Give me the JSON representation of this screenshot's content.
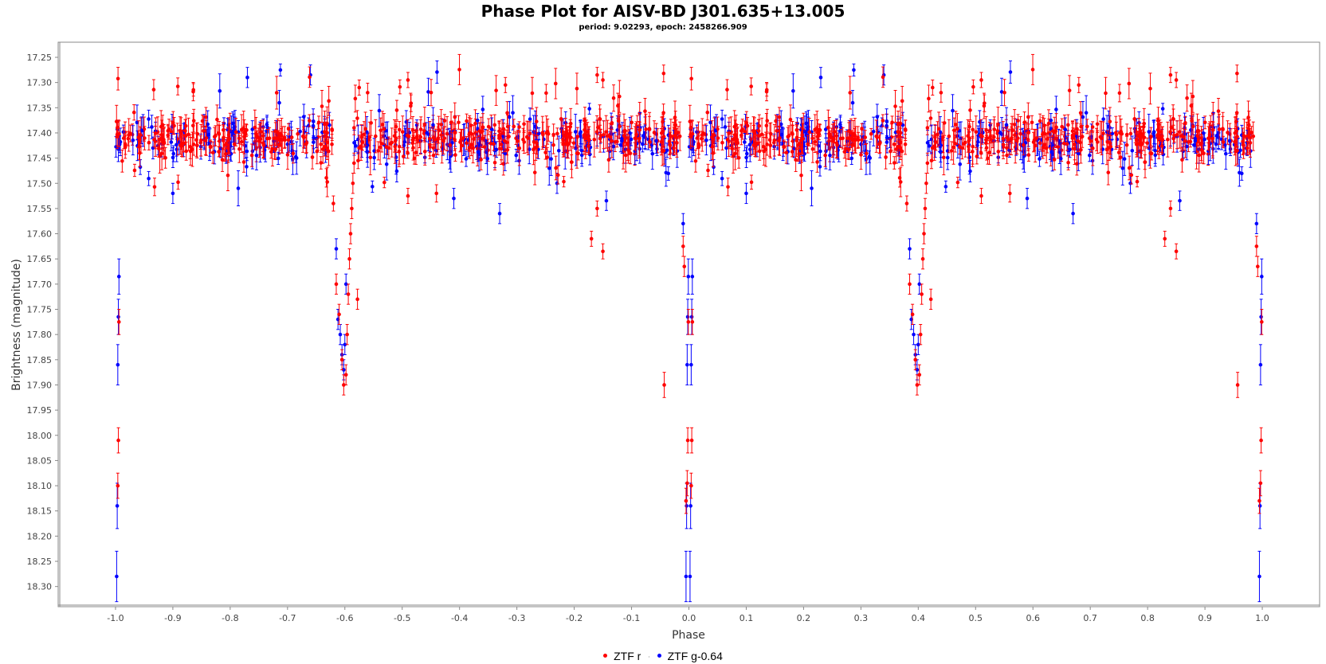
{
  "chart_data": {
    "type": "scatter",
    "title": "Phase Plot for AISV-BD J301.635+13.005",
    "subtitle": "period: 9.02293, epoch: 2458266.909",
    "xlabel": "Phase",
    "ylabel": "Brightness (magnitude)",
    "xlim": [
      -1.1,
      1.1
    ],
    "ylim": [
      18.34,
      17.22
    ],
    "y_inverted": true,
    "x_ticks": [
      "-1.0",
      "-0.9",
      "-0.8",
      "-0.7",
      "-0.6",
      "-0.5",
      "-0.4",
      "-0.3",
      "-0.2",
      "-0.1",
      "0.0",
      "0.1",
      "0.2",
      "0.3",
      "0.4",
      "0.5",
      "0.6",
      "0.7",
      "0.8",
      "0.9",
      "1.0"
    ],
    "y_ticks": [
      "17.25",
      "17.30",
      "17.35",
      "17.40",
      "17.45",
      "17.50",
      "17.55",
      "17.60",
      "17.65",
      "17.70",
      "17.75",
      "17.80",
      "17.85",
      "17.90",
      "17.95",
      "18.00",
      "18.05",
      "18.10",
      "18.15",
      "18.20",
      "18.25",
      "18.30"
    ],
    "grid": false,
    "error_bars": true,
    "legend_position": "bottom-center",
    "phase_repeat": "points shown for phase p and repeated at p+1",
    "series": [
      {
        "name": "ZTF r",
        "color": "#ff0000",
        "baseline": 17.41,
        "baseline_scatter": 0.03,
        "baseline_range": [
          -1.0,
          0.0
        ],
        "points": [
          {
            "x": -0.996,
            "y": 18.1,
            "err": 0.025
          },
          {
            "x": -0.995,
            "y": 18.01,
            "err": 0.025
          },
          {
            "x": -0.994,
            "y": 17.775,
            "err": 0.025
          },
          {
            "x": -0.62,
            "y": 17.54,
            "err": 0.015
          },
          {
            "x": -0.615,
            "y": 17.7,
            "err": 0.02
          },
          {
            "x": -0.61,
            "y": 17.76,
            "err": 0.02
          },
          {
            "x": -0.605,
            "y": 17.85,
            "err": 0.02
          },
          {
            "x": -0.602,
            "y": 17.9,
            "err": 0.02
          },
          {
            "x": -0.598,
            "y": 17.88,
            "err": 0.02
          },
          {
            "x": -0.596,
            "y": 17.8,
            "err": 0.02
          },
          {
            "x": -0.594,
            "y": 17.72,
            "err": 0.02
          },
          {
            "x": -0.592,
            "y": 17.65,
            "err": 0.02
          },
          {
            "x": -0.59,
            "y": 17.6,
            "err": 0.02
          },
          {
            "x": -0.588,
            "y": 17.55,
            "err": 0.02
          },
          {
            "x": -0.586,
            "y": 17.5,
            "err": 0.02
          },
          {
            "x": -0.584,
            "y": 17.46,
            "err": 0.02
          },
          {
            "x": -0.578,
            "y": 17.73,
            "err": 0.02
          },
          {
            "x": -0.575,
            "y": 17.31,
            "err": 0.015
          },
          {
            "x": -0.49,
            "y": 17.295,
            "err": 0.015
          },
          {
            "x": -0.49,
            "y": 17.525,
            "err": 0.015
          },
          {
            "x": -0.32,
            "y": 17.305,
            "err": 0.015
          },
          {
            "x": -0.17,
            "y": 17.61,
            "err": 0.015
          },
          {
            "x": -0.16,
            "y": 17.285,
            "err": 0.015
          },
          {
            "x": -0.16,
            "y": 17.55,
            "err": 0.015
          },
          {
            "x": -0.15,
            "y": 17.295,
            "err": 0.015
          },
          {
            "x": -0.15,
            "y": 17.635,
            "err": 0.015
          },
          {
            "x": -0.043,
            "y": 17.9,
            "err": 0.025
          },
          {
            "x": -0.01,
            "y": 17.625,
            "err": 0.02
          },
          {
            "x": -0.008,
            "y": 17.665,
            "err": 0.02
          },
          {
            "x": -0.005,
            "y": 18.13,
            "err": 0.025
          },
          {
            "x": -0.003,
            "y": 18.095,
            "err": 0.025
          },
          {
            "x": -0.002,
            "y": 18.01,
            "err": 0.025
          },
          {
            "x": -0.001,
            "y": 17.775,
            "err": 0.025
          }
        ]
      },
      {
        "name": "ZTF g-0.64",
        "color": "#0000ff",
        "baseline": 17.415,
        "baseline_scatter": 0.035,
        "baseline_range": [
          -1.0,
          0.0
        ],
        "points": [
          {
            "x": -0.998,
            "y": 18.28,
            "err": 0.05
          },
          {
            "x": -0.997,
            "y": 18.14,
            "err": 0.045
          },
          {
            "x": -0.996,
            "y": 17.86,
            "err": 0.04
          },
          {
            "x": -0.995,
            "y": 17.765,
            "err": 0.035
          },
          {
            "x": -0.994,
            "y": 17.685,
            "err": 0.035
          },
          {
            "x": -0.9,
            "y": 17.52,
            "err": 0.02
          },
          {
            "x": -0.77,
            "y": 17.29,
            "err": 0.02
          },
          {
            "x": -0.66,
            "y": 17.285,
            "err": 0.02
          },
          {
            "x": -0.615,
            "y": 17.63,
            "err": 0.02
          },
          {
            "x": -0.612,
            "y": 17.77,
            "err": 0.02
          },
          {
            "x": -0.608,
            "y": 17.8,
            "err": 0.02
          },
          {
            "x": -0.605,
            "y": 17.84,
            "err": 0.02
          },
          {
            "x": -0.602,
            "y": 17.87,
            "err": 0.02
          },
          {
            "x": -0.6,
            "y": 17.82,
            "err": 0.02
          },
          {
            "x": -0.598,
            "y": 17.7,
            "err": 0.02
          },
          {
            "x": -0.41,
            "y": 17.53,
            "err": 0.02
          },
          {
            "x": -0.33,
            "y": 17.56,
            "err": 0.02
          },
          {
            "x": -0.23,
            "y": 17.5,
            "err": 0.02
          },
          {
            "x": -0.01,
            "y": 17.58,
            "err": 0.02
          },
          {
            "x": -0.005,
            "y": 18.28,
            "err": 0.05
          },
          {
            "x": -0.004,
            "y": 18.14,
            "err": 0.045
          },
          {
            "x": -0.003,
            "y": 17.86,
            "err": 0.04
          },
          {
            "x": -0.002,
            "y": 17.765,
            "err": 0.035
          },
          {
            "x": -0.001,
            "y": 17.685,
            "err": 0.035
          }
        ]
      }
    ]
  }
}
